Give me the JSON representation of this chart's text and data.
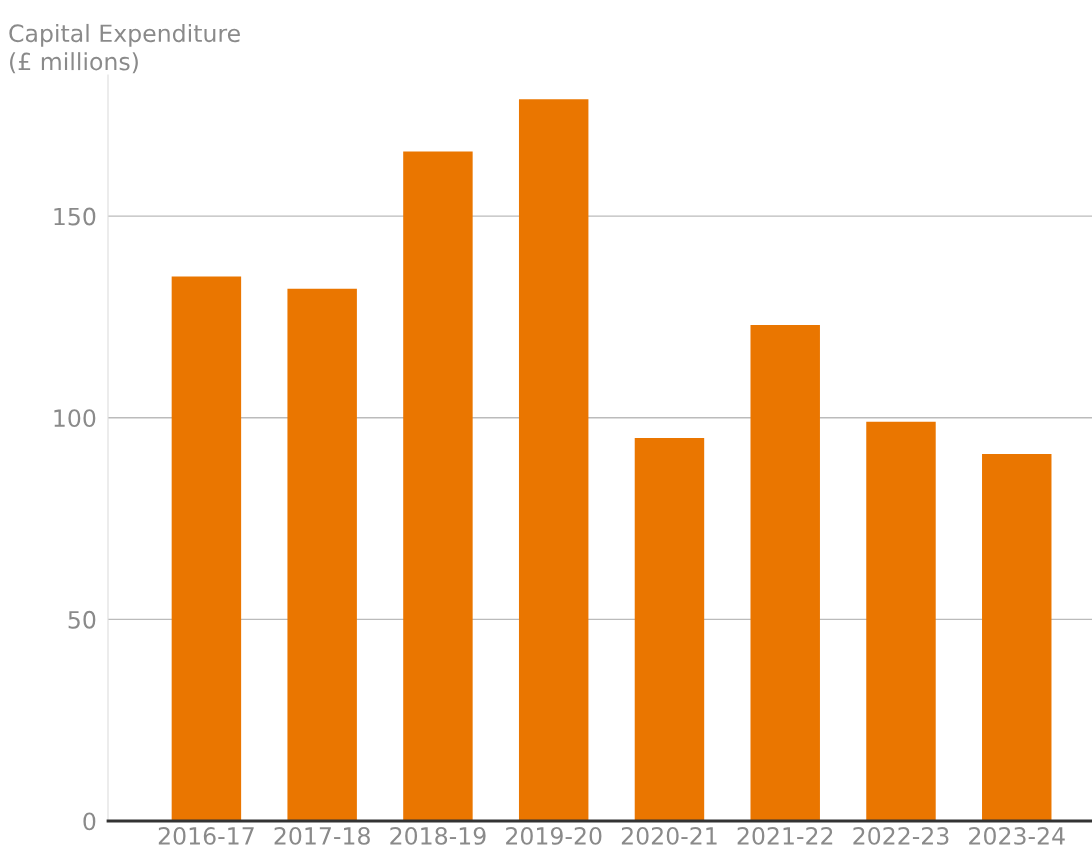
{
  "chart_data": {
    "type": "bar",
    "ylabel": "Capital Expenditure\n(£ millions)",
    "categories": [
      "2016-17",
      "2017-18",
      "2018-19",
      "2019-20",
      "2020-21",
      "2021-22",
      "2022-23",
      "2023-24"
    ],
    "values": [
      135,
      132,
      166,
      179,
      95,
      123,
      99,
      91
    ],
    "color": "#ea7600",
    "ylim": [
      0,
      185
    ],
    "yticks": [
      0,
      50,
      100,
      150
    ],
    "grid": "y",
    "legend": false
  }
}
